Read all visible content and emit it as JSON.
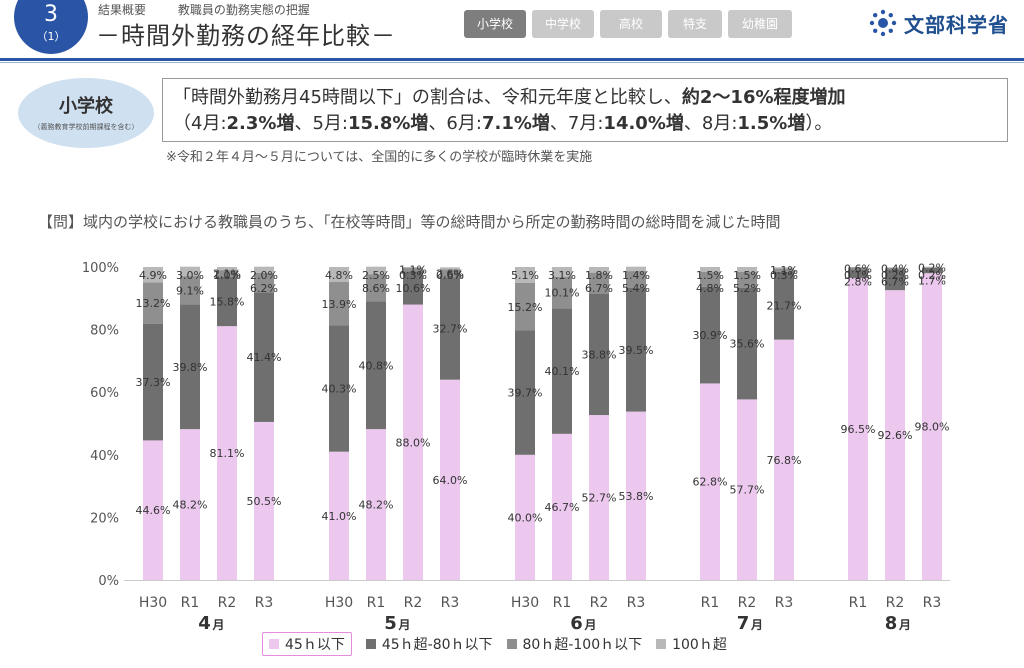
{
  "header": {
    "section_number": "3",
    "section_sub": "（1）",
    "crumbs": [
      "結果概要",
      "教職員の勤務実態の把握"
    ],
    "title": "－時間外勤務の経年比較－",
    "tabs": [
      {
        "label": "小学校",
        "active": true
      },
      {
        "label": "中学校",
        "active": false
      },
      {
        "label": "高校",
        "active": false
      },
      {
        "label": "特支",
        "active": false
      },
      {
        "label": "幼稚園",
        "active": false
      }
    ],
    "logo_text": "文部科学省"
  },
  "school": {
    "label": "小学校",
    "sub": "（義務教育学校前期課程を含む）"
  },
  "summary": {
    "line1_pre": "「時間外勤務月45時間以下」の割合は、令和元年度と比較し、",
    "line1_bold": "約2～16%程度増加",
    "line2": [
      {
        "t": "（4月:",
        "b": false
      },
      {
        "t": "2.3%増",
        "b": true
      },
      {
        "t": "、5月:",
        "b": false
      },
      {
        "t": "15.8%増",
        "b": true
      },
      {
        "t": "、6月:",
        "b": false
      },
      {
        "t": "7.1%増",
        "b": true
      },
      {
        "t": "、7月:",
        "b": false
      },
      {
        "t": "14.0%増",
        "b": true
      },
      {
        "t": "、8月:",
        "b": false
      },
      {
        "t": "1.5%増",
        "b": true
      },
      {
        "t": "）。",
        "b": false
      }
    ]
  },
  "note": "※令和２年４月～５月については、全国的に多くの学校が臨時休業を実施",
  "question": "【問】域内の学校における教職員のうち、「在校等時間」等の総時間から所定の勤務時間の総時間を減じた時間",
  "colors": {
    "le45": "#ecc8ef",
    "s45_80": "#6f6f6f",
    "s80_100": "#8f8f8f",
    "s100": "#b8b8b8",
    "brand": "#2a55a6"
  },
  "chart_data": {
    "type": "bar",
    "stacked": true,
    "ylim": [
      0,
      100
    ],
    "yticks": [
      "0%",
      "20%",
      "40%",
      "60%",
      "80%",
      "100%"
    ],
    "grid": false,
    "legend_position": "bottom",
    "series": [
      {
        "name": "45ｈ以下"
      },
      {
        "name": "45ｈ超-80ｈ以下"
      },
      {
        "name": "80ｈ超-100ｈ以下"
      },
      {
        "name": "100ｈ超"
      }
    ],
    "groups": [
      {
        "month": "4",
        "unit": "月",
        "bars": [
          {
            "year": "H30",
            "values": [
              44.6,
              37.3,
              13.2,
              4.9
            ]
          },
          {
            "year": "R1",
            "values": [
              48.2,
              39.8,
              9.1,
              3.0
            ]
          },
          {
            "year": "R2",
            "values": [
              81.1,
              15.8,
              2.1,
              1.0
            ]
          },
          {
            "year": "R3",
            "values": [
              50.5,
              41.4,
              6.2,
              2.0
            ]
          }
        ]
      },
      {
        "month": "5",
        "unit": "月",
        "bars": [
          {
            "year": "H30",
            "values": [
              41.0,
              40.3,
              13.9,
              4.8
            ]
          },
          {
            "year": "R1",
            "values": [
              48.2,
              40.8,
              8.6,
              2.5
            ]
          },
          {
            "year": "R2",
            "values": [
              88.0,
              10.6,
              1.1,
              0.3
            ]
          },
          {
            "year": "R3",
            "values": [
              64.0,
              32.7,
              2.6,
              0.6
            ]
          }
        ]
      },
      {
        "month": "6",
        "unit": "月",
        "bars": [
          {
            "year": "H30",
            "values": [
              40.0,
              39.7,
              15.2,
              5.1
            ]
          },
          {
            "year": "R1",
            "values": [
              46.7,
              40.1,
              10.1,
              3.1
            ]
          },
          {
            "year": "R2",
            "values": [
              52.7,
              38.8,
              6.7,
              1.8
            ]
          },
          {
            "year": "R3",
            "values": [
              53.8,
              39.5,
              5.4,
              1.4
            ]
          }
        ]
      },
      {
        "month": "7",
        "unit": "月",
        "bars": [
          {
            "year": "R1",
            "values": [
              62.8,
              30.9,
              4.8,
              1.5
            ]
          },
          {
            "year": "R2",
            "values": [
              57.7,
              35.6,
              5.2,
              1.5
            ]
          },
          {
            "year": "R3",
            "values": [
              76.8,
              21.7,
              1.1,
              0.3
            ]
          }
        ]
      },
      {
        "month": "8",
        "unit": "月",
        "bars": [
          {
            "year": "R1",
            "values": [
              96.5,
              2.8,
              0.6,
              0.1
            ]
          },
          {
            "year": "R2",
            "values": [
              92.6,
              6.7,
              0.4,
              0.2
            ]
          },
          {
            "year": "R3",
            "values": [
              98.0,
              1.7,
              0.2,
              0.2
            ]
          }
        ]
      }
    ]
  }
}
